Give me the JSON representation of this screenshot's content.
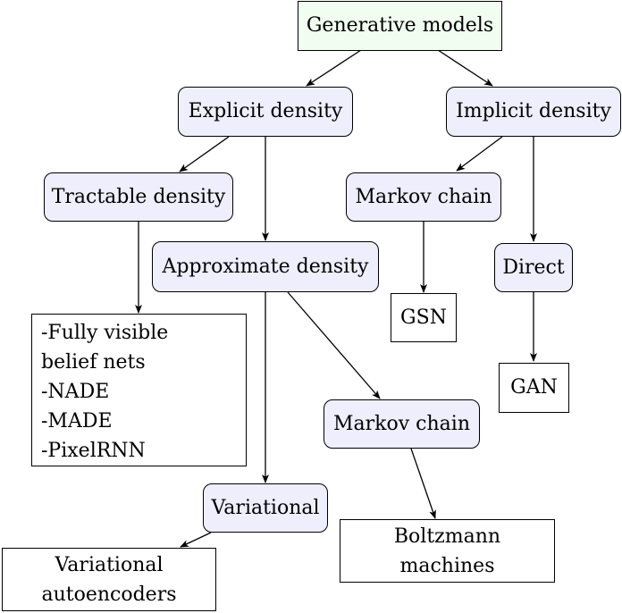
{
  "colors": {
    "root_fill": "#f2fdf2",
    "category_fill": "#eeeefc",
    "leaf_fill": "#ffffff",
    "stroke": "#000000"
  },
  "nodes": {
    "generative_models": "Generative models",
    "explicit_density": "Explicit density",
    "implicit_density": "Implicit density",
    "tractable_density": "Tractable density",
    "approximate_density": "Approximate density",
    "markov_chain_implicit": "Markov chain",
    "direct": "Direct",
    "gsn": "GSN",
    "gan": "GAN",
    "tractable_list": [
      "-Fully visible",
      "belief nets",
      "-NADE",
      "-MADE",
      "-PixelRNN"
    ],
    "markov_chain_approx": "Markov chain",
    "variational": "Variational",
    "boltzmann": [
      "Boltzmann",
      "machines"
    ],
    "variational_autoencoders": [
      "Variational",
      "autoencoders"
    ]
  }
}
